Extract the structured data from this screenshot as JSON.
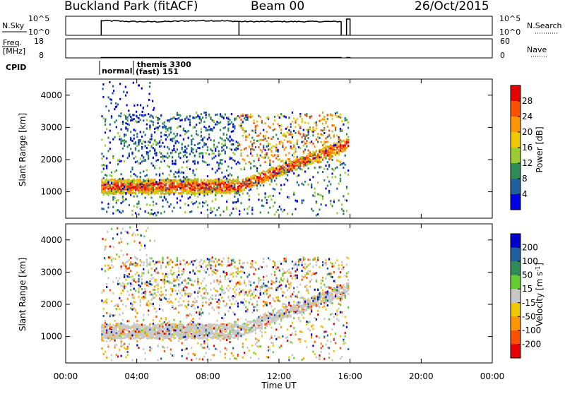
{
  "header": {
    "site_title": "Buckland Park (fitACF)",
    "beam_label": "Beam 00",
    "date_label": "26/Oct/2015"
  },
  "noise_panel": {
    "left_label": "N.Sky",
    "right_label": "N.Search",
    "left_ticks": [
      "10^5",
      "10^0"
    ],
    "right_ticks": [
      "10^5",
      "10^0"
    ]
  },
  "freq_panel": {
    "left_label_line1": "Freq.",
    "left_label_line2": "[MHz]",
    "right_label": "Nave",
    "left_ticks": [
      "18",
      "8"
    ],
    "right_ticks": [
      "60",
      "0"
    ]
  },
  "cpid": {
    "label": "CPID",
    "segment1": "normal",
    "segment2_line1": "themis 3300",
    "segment2_line2": "(fast) 151"
  },
  "power_panel": {
    "ylabel": "Slant Range [km]",
    "yticks": [
      "4000",
      "3000",
      "2000",
      "1000"
    ],
    "colorbar_title": "Power [dB]",
    "colorbar_ticks": [
      "28",
      "24",
      "20",
      "16",
      "12",
      "8",
      "4"
    ],
    "colorbar_colors": [
      "#e60000",
      "#ff5000",
      "#ff9600",
      "#f0c800",
      "#9acd32",
      "#2e8b57",
      "#1f5fa0",
      "#0000e6"
    ]
  },
  "velocity_panel": {
    "ylabel": "Slant Range [km]",
    "yticks": [
      "4000",
      "3000",
      "2000",
      "1000"
    ],
    "colorbar_title_prefix": "Velocity [m s",
    "colorbar_title_sup": "-1",
    "colorbar_title_suffix": "]",
    "colorbar_ticks": [
      "200",
      "100",
      "50",
      "15",
      "-15",
      "-50",
      "-100",
      "-200"
    ],
    "colorbar_colors": [
      "#0000cc",
      "#1f5fa0",
      "#2e8b57",
      "#66cc33",
      "#c8c8c8",
      "#f0c800",
      "#ff9600",
      "#ff5000",
      "#e60000"
    ]
  },
  "xaxis": {
    "label": "Time UT",
    "ticks": [
      "00:00",
      "04:00",
      "08:00",
      "12:00",
      "16:00",
      "20:00",
      "00:00"
    ]
  },
  "chart_data": [
    {
      "type": "line",
      "title": "Buckland Park (fitACF)",
      "x_range_hours": [
        0,
        24
      ],
      "ylabel": "N.Sky",
      "y2label": "N.Search",
      "series": [
        {
          "name": "N.Sky",
          "x": [
            2.0,
            4.0,
            6.0,
            8.0,
            9.7,
            9.8,
            12.0,
            14.0,
            15.5,
            15.8,
            16.0
          ],
          "y": [
            3.9,
            4.0,
            4.1,
            4.2,
            4.1,
            3.8,
            3.9,
            3.9,
            4.0,
            4.6,
            4.6
          ]
        }
      ]
    },
    {
      "type": "line",
      "ylabel": "Freq. [MHz]",
      "y2label": "Nave",
      "ylim": [
        8,
        18
      ],
      "y2lim": [
        0,
        60
      ],
      "series": [
        {
          "name": "Freq.",
          "x": [
            2.0,
            15.5,
            15.8,
            16.0
          ],
          "y": [
            8.2,
            8.2,
            8.2,
            8.2
          ]
        }
      ]
    },
    {
      "type": "heatmap",
      "title": "Power [dB]",
      "xlabel": "Time UT",
      "ylabel": "Slant Range [km]",
      "x_range_hours": [
        0,
        24
      ],
      "ylim": [
        180,
        4500
      ],
      "colorbar_range": [
        0,
        30
      ],
      "features": [
        {
          "x_start": 2.0,
          "x_end": 9.7,
          "range_km": 1150,
          "power_db": 22
        },
        {
          "x_start": 9.7,
          "x_end": 15.5,
          "range_start_km": 1150,
          "range_end_km": 2400,
          "power_db": 20
        }
      ]
    },
    {
      "type": "heatmap",
      "title": "Velocity [m s-1]",
      "xlabel": "Time UT",
      "ylabel": "Slant Range [km]",
      "x_range_hours": [
        0,
        24
      ],
      "ylim": [
        180,
        4500
      ],
      "colorbar_range": [
        -250,
        250
      ],
      "features": [
        {
          "x_start": 2.0,
          "x_end": 9.7,
          "range_km": 1150,
          "velocity_ms": 0
        },
        {
          "x_start": 9.7,
          "x_end": 15.5,
          "range_start_km": 1150,
          "range_end_km": 2500,
          "velocity_ms": 0
        }
      ]
    }
  ]
}
